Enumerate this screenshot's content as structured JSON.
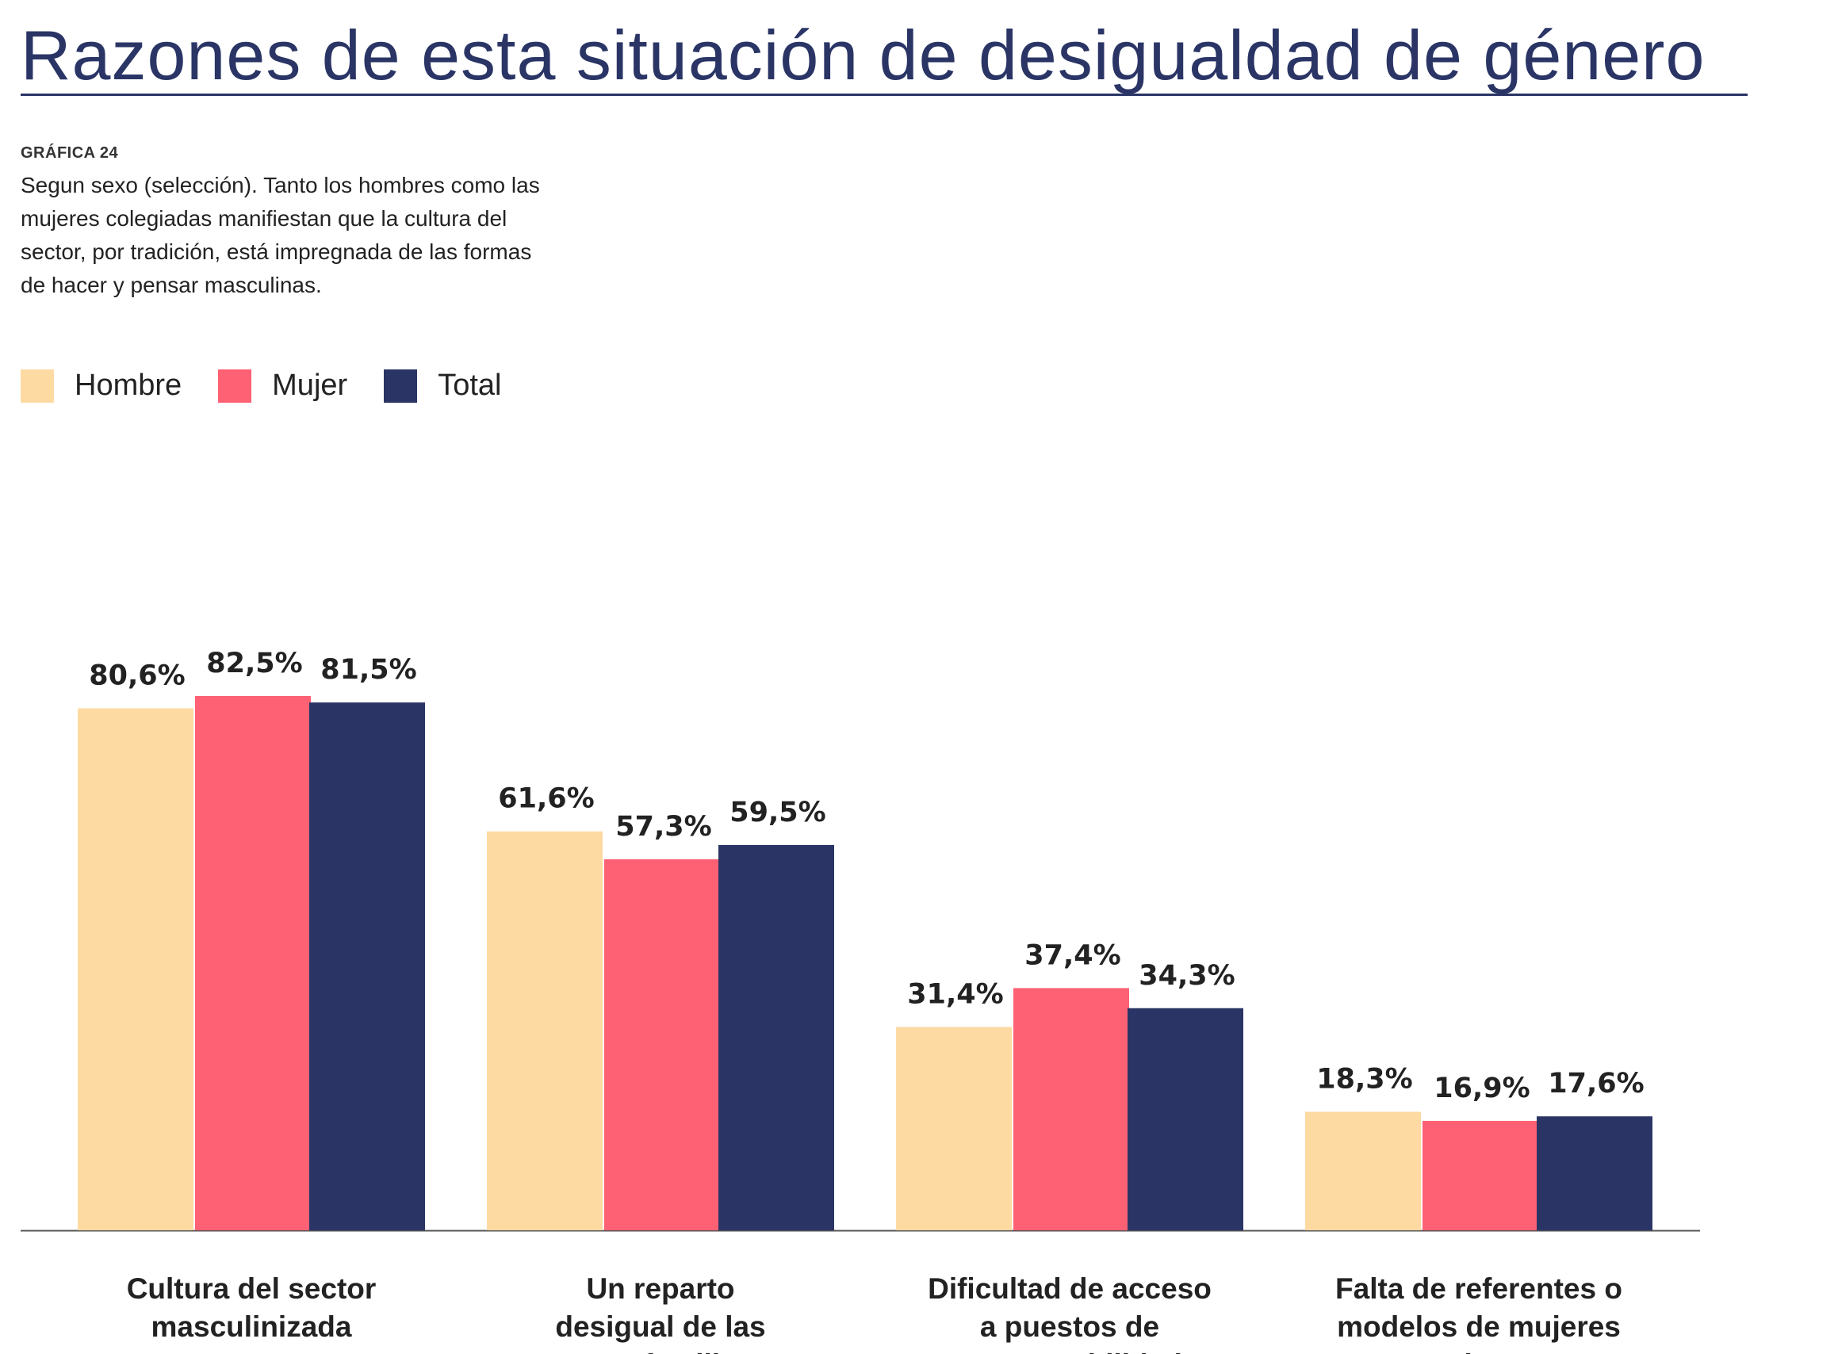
{
  "header": {
    "title": "Razones de esta situación de desigualdad de género",
    "graph_label": "GRÁFICA 24",
    "subtitle": "Segun sexo (selección). Tanto los hombres como las mujeres colegiadas manifiestan que la cultura del sector, por tradición, está impregnada de las formas de hacer y pensar masculinas."
  },
  "legend": [
    {
      "label": "Hombre",
      "color": "#fedaa3"
    },
    {
      "label": "Mujer",
      "color": "#fe6074"
    },
    {
      "label": "Total",
      "color": "#2a3566"
    }
  ],
  "chart_data": {
    "type": "bar",
    "categories": [
      [
        "Cultura del sector",
        "masculinizada"
      ],
      [
        "Un reparto",
        "desigual de las",
        "cargas familiares"
      ],
      [
        "Dificultad de acceso",
        "a puestos de",
        "responsabilidad"
      ],
      [
        "Falta de referentes o",
        "modelos de mujeres",
        "arquitectas"
      ]
    ],
    "series": [
      {
        "name": "Hombre",
        "values": [
          80.6,
          61.6,
          31.4,
          18.3
        ],
        "labels": [
          "80,6%",
          "61,6%",
          "31,4%",
          "18,3%"
        ],
        "color": "#fedaa3"
      },
      {
        "name": "Mujer",
        "values": [
          82.5,
          57.3,
          37.4,
          16.9
        ],
        "labels": [
          "82,5%",
          "57,3%",
          "37,4%",
          "16,9%"
        ],
        "color": "#fe6074"
      },
      {
        "name": "Total",
        "values": [
          81.5,
          59.5,
          34.3,
          17.6
        ],
        "labels": [
          "81,5%",
          "59,5%",
          "34,3%",
          "17,6%"
        ],
        "color": "#2a3566"
      }
    ],
    "unit": "%",
    "ylim": [
      0,
      100
    ],
    "grid": false,
    "legend_position": "top-left"
  }
}
